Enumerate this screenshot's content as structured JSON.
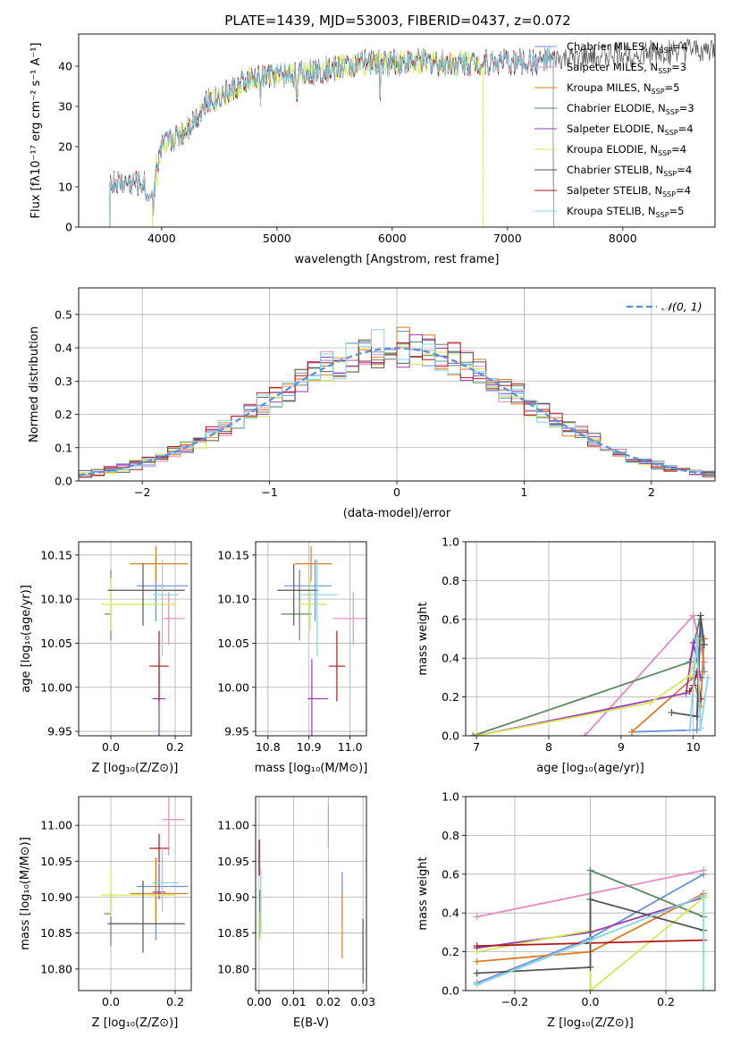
{
  "title": "PLATE=1439, MJD=53003, FIBERID=0437, z=0.072",
  "colors": {
    "Chabrier MILES": "#6a8fd8",
    "Salpeter MILES": "#e58ac1",
    "Kroupa MILES": "#e07b22",
    "Chabrier ELODIE": "#5e8a62",
    "Salpeter ELODIE": "#9a3ab5",
    "Kroupa ELODIE": "#d4e857",
    "Chabrier STELIB": "#555555",
    "Salpeter STELIB": "#b01818",
    "Kroupa STELIB": "#86d4e6",
    "gaussian": "#5b8ed6",
    "grid": "#b0b0b0"
  },
  "chart_data": [
    {
      "id": "spectrum",
      "type": "line",
      "xlabel": "wavelength [Angstrom, rest frame]",
      "ylabel": "Flux [fλ10⁻¹⁷ erg cm⁻² s⁻¹ A⁻¹]",
      "xlim": [
        3280,
        8800
      ],
      "ylim": [
        0,
        48
      ],
      "xticks": [
        4000,
        5000,
        6000,
        7000,
        8000
      ],
      "yticks": [
        0,
        10,
        20,
        30,
        40
      ],
      "legend_position": "upper-right",
      "series": [
        {
          "name": "Chabrier MILES, N_SSP=4"
        },
        {
          "name": "Salpeter MILES, N_SSP=3"
        },
        {
          "name": "Kroupa MILES, N_SSP=5"
        },
        {
          "name": "Chabrier ELODIE, N_SSP=3"
        },
        {
          "name": "Salpeter ELODIE, N_SSP=4"
        },
        {
          "name": "Kroupa ELODIE, N_SSP=4"
        },
        {
          "name": "Chabrier STELIB, N_SSP=4"
        },
        {
          "name": "Salpeter STELIB, N_SSP=4"
        },
        {
          "name": "Kroupa STELIB, N_SSP=5"
        }
      ],
      "continuum": {
        "x": [
          3550,
          3700,
          3900,
          4000,
          4200,
          4400,
          4600,
          4800,
          5000,
          5200,
          5400,
          5600,
          5800,
          6000,
          6200,
          6400,
          6600,
          6800,
          7000,
          7200,
          7400,
          7600,
          7800,
          8000,
          8200,
          8400,
          8800
        ],
        "y": [
          11,
          11,
          11,
          20,
          24,
          31,
          34,
          37,
          38,
          38,
          39,
          40,
          41,
          41,
          41,
          41,
          41,
          41,
          41,
          41,
          41.5,
          42,
          42.5,
          43,
          43,
          43.5,
          44
        ]
      }
    },
    {
      "id": "residual-histogram",
      "type": "bar",
      "xlabel": "(data-model)/error",
      "ylabel": "Normed distribution",
      "xlim": [
        -2.5,
        2.5
      ],
      "ylim": [
        0,
        0.58
      ],
      "xticks": [
        -2,
        -1,
        0,
        1,
        2
      ],
      "yticks": [
        0.0,
        0.1,
        0.2,
        0.3,
        0.4,
        0.5
      ],
      "grid": true,
      "legend_position": "upper-right",
      "bin_width": 0.1,
      "reference": {
        "name": "𝒩(0, 1)",
        "mean": 0,
        "sigma": 1
      },
      "series_from": "Gaussian-like distribution for each of the 9 SSP fits"
    },
    {
      "id": "age-vs-metallicity",
      "type": "scatter",
      "xlabel": "Z [log₁₀(Z/Z⊙)]",
      "ylabel": "age  [log₁₀(age/yr)]",
      "xlim": [
        -0.1,
        0.25
      ],
      "ylim": [
        9.945,
        10.165
      ],
      "xticks": [
        0.0,
        0.2
      ],
      "yticks": [
        9.95,
        10.0,
        10.05,
        10.1,
        10.15
      ],
      "grid": true
    },
    {
      "id": "age-vs-mass",
      "type": "scatter",
      "xlabel": "mass [log₁₀(M/M⊙)]",
      "xlim": [
        10.77,
        11.04
      ],
      "ylim": [
        9.945,
        10.165
      ],
      "xticks": [
        10.8,
        10.9,
        11.0
      ],
      "yticks": [
        9.95,
        10.0,
        10.05,
        10.1,
        10.15
      ],
      "grid": true
    },
    {
      "id": "mass-weight-vs-age",
      "type": "line",
      "xlabel": "age  [log₁₀(age/yr)]",
      "ylabel": "mass weight",
      "xlim": [
        6.85,
        10.3
      ],
      "ylim": [
        0,
        1
      ],
      "xticks": [
        7,
        8,
        9,
        10
      ],
      "yticks": [
        0.0,
        0.2,
        0.4,
        0.6,
        0.8,
        1.0
      ],
      "grid": true
    },
    {
      "id": "mass-vs-metallicity",
      "type": "scatter",
      "xlabel": "Z [log₁₀(Z/Z⊙)]",
      "ylabel": "mass [log₁₀(M/M⊙)]",
      "xlim": [
        -0.1,
        0.25
      ],
      "ylim": [
        10.77,
        11.04
      ],
      "xticks": [
        0.0,
        0.2
      ],
      "yticks": [
        10.8,
        10.85,
        10.9,
        10.95,
        11.0
      ],
      "grid": true
    },
    {
      "id": "mass-vs-ebv",
      "type": "scatter",
      "xlabel": "E(B-V)",
      "xlim": [
        -0.001,
        0.031
      ],
      "ylim": [
        10.77,
        11.04
      ],
      "xticks": [
        0.0,
        0.01,
        0.02,
        0.03
      ],
      "yticks": [
        10.8,
        10.85,
        10.9,
        10.95,
        11.0
      ],
      "grid": true
    },
    {
      "id": "mass-weight-vs-metallicity",
      "type": "line",
      "xlabel": "Z [log₁₀(Z/Z⊙)]",
      "ylabel": "mass weight",
      "xlim": [
        -0.33,
        0.33
      ],
      "ylim": [
        0,
        1
      ],
      "xticks": [
        -0.2,
        0.0,
        0.2
      ],
      "yticks": [
        0.0,
        0.2,
        0.4,
        0.6,
        0.8,
        1.0
      ],
      "grid": true
    }
  ],
  "points": {
    "Chabrier MILES": {
      "Z": 0.14,
      "Zerr": [
        0.06,
        0.1
      ],
      "age": 10.115,
      "ageErr": [
        0.04,
        0.03
      ],
      "mass": 10.915,
      "massErr": [
        0.075,
        0.04
      ],
      "ebv": 0.024,
      "ebvMass": [
        10.87,
        10.935
      ]
    },
    "Salpeter MILES": {
      "Z": 0.18,
      "Zerr": [
        0.02,
        0.05
      ],
      "age": 10.078,
      "ageErr": [
        0.03,
        0.03
      ],
      "mass": 11.008,
      "massErr": [
        0.05,
        0.05
      ],
      "ebv": 0.02,
      "ebvMass": [
        10.97,
        11.03
      ]
    },
    "Kroupa MILES": {
      "Z": 0.14,
      "Zerr": [
        0.08,
        0.1
      ],
      "age": 10.14,
      "ageErr": [
        0.02,
        0.02
      ],
      "mass": 10.905,
      "massErr": [
        0.04,
        0.05
      ],
      "ebv": 0.024,
      "ebvMass": [
        10.815,
        10.905
      ]
    },
    "Chabrier ELODIE": {
      "Z": 0.0,
      "Zerr": [
        0.02,
        0.0
      ],
      "age": 10.083,
      "ageErr": [
        0.03,
        0.05
      ],
      "mass": 10.877,
      "massErr": [
        0.045,
        0.03
      ],
      "ebv": 0.0002,
      "ebvMass": [
        10.845,
        10.91
      ]
    },
    "Salpeter ELODIE": {
      "Z": 0.15,
      "Zerr": [
        0.02,
        0.02
      ],
      "age": 9.987,
      "ageErr": [
        0.045,
        0.045
      ],
      "mass": 10.907,
      "massErr": [
        0.01,
        0.04
      ],
      "ebv": 0.0001,
      "ebvMass": [
        10.93,
        10.98
      ]
    },
    "Kroupa ELODIE": {
      "Z": 0.0,
      "Zerr": [
        0.03,
        0.2
      ],
      "age": 10.094,
      "ageErr": [
        0.03,
        0.03
      ],
      "mass": 10.903,
      "massErr": [
        0.03,
        0.04
      ],
      "ebv": 0.0003,
      "ebvMass": [
        10.84,
        10.88
      ]
    },
    "Chabrier STELIB": {
      "Z": 0.1,
      "Zerr": [
        0.11,
        0.13
      ],
      "age": 10.11,
      "ageErr": [
        0.04,
        0.03
      ],
      "mass": 10.863,
      "massErr": [
        0.04,
        0.06
      ],
      "ebv": 0.03,
      "ebvMass": [
        10.78,
        10.87
      ]
    },
    "Salpeter STELIB": {
      "Z": 0.15,
      "Zerr": [
        0.03,
        0.03
      ],
      "age": 10.024,
      "ageErr": [
        0.04,
        0.04
      ],
      "mass": 10.968,
      "massErr": [
        0.02,
        0.02
      ],
      "ebv": 0.0,
      "ebvMass": [
        10.93,
        10.98
      ]
    },
    "Kroupa STELIB": {
      "Z": 0.16,
      "Zerr": [
        0.03,
        0.05
      ],
      "age": 10.105,
      "ageErr": [
        0.07,
        0.04
      ],
      "mass": 10.92,
      "massErr": [
        0.04,
        0.05
      ],
      "ebv": 0.0005,
      "ebvMass": [
        10.85,
        10.94
      ]
    }
  },
  "mass_weight_age": {
    "Chabrier MILES": [
      [
        9.15,
        0.02
      ],
      [
        10.05,
        0.03
      ],
      [
        10.1,
        0.6
      ],
      [
        10.15,
        0.33
      ]
    ],
    "Salpeter MILES": [
      [
        8.5,
        0.0
      ],
      [
        10.0,
        0.62
      ],
      [
        10.15,
        0.38
      ]
    ],
    "Kroupa MILES": [
      [
        9.15,
        0.02
      ],
      [
        10.0,
        0.3
      ],
      [
        10.1,
        0.15
      ],
      [
        10.15,
        0.5
      ]
    ],
    "Chabrier ELODIE": [
      [
        6.95,
        0.0
      ],
      [
        9.95,
        0.38
      ],
      [
        10.1,
        0.62
      ]
    ],
    "Salpeter ELODIE": [
      [
        7.0,
        0.0
      ],
      [
        9.9,
        0.22
      ],
      [
        10.0,
        0.48
      ],
      [
        10.1,
        0.3
      ]
    ],
    "Kroupa ELODIE": [
      [
        7.0,
        0.0
      ],
      [
        9.4,
        0.17
      ],
      [
        9.95,
        0.31
      ],
      [
        10.1,
        0.48
      ]
    ],
    "Chabrier STELIB": [
      [
        9.7,
        0.12
      ],
      [
        10.05,
        0.1
      ],
      [
        10.1,
        0.62
      ],
      [
        10.15,
        0.47
      ]
    ],
    "Salpeter STELIB": [
      [
        9.95,
        0.23
      ],
      [
        10.0,
        0.26
      ],
      [
        10.05,
        0.33
      ],
      [
        10.1,
        0.19
      ]
    ],
    "Kroupa STELIB": [
      [
        9.95,
        0.03
      ],
      [
        10.05,
        0.5
      ],
      [
        10.1,
        0.04
      ],
      [
        10.2,
        0.3
      ]
    ]
  },
  "mass_weight_Z": {
    "Chabrier MILES": [
      [
        -0.3,
        0.04
      ],
      [
        0.0,
        0.27
      ],
      [
        0.3,
        0.6
      ]
    ],
    "Salpeter MILES": [
      [
        -0.3,
        0.38
      ],
      [
        0.3,
        0.62
      ]
    ],
    "Kroupa MILES": [
      [
        -0.3,
        0.15
      ],
      [
        0.0,
        0.2
      ],
      [
        0.3,
        0.5
      ]
    ],
    "Chabrier ELODIE": [
      [
        0.0,
        0.0
      ],
      [
        0.0,
        0.62
      ],
      [
        0.3,
        0.38
      ]
    ],
    "Salpeter ELODIE": [
      [
        -0.3,
        0.22
      ],
      [
        0.0,
        0.3
      ],
      [
        0.3,
        0.48
      ]
    ],
    "Kroupa ELODIE": [
      [
        -0.3,
        0.2
      ],
      [
        0.0,
        0.31
      ],
      [
        0.0,
        0.0
      ],
      [
        0.3,
        0.48
      ]
    ],
    "Chabrier STELIB": [
      [
        -0.3,
        0.09
      ],
      [
        0.0,
        0.12
      ],
      [
        0.0,
        0.47
      ],
      [
        0.3,
        0.31
      ]
    ],
    "Salpeter STELIB": [
      [
        -0.3,
        0.23
      ],
      [
        0.3,
        0.26
      ]
    ],
    "Kroupa STELIB": [
      [
        -0.3,
        0.03
      ],
      [
        0.0,
        0.26
      ],
      [
        0.3,
        0.49
      ],
      [
        0.3,
        0.0
      ]
    ]
  }
}
